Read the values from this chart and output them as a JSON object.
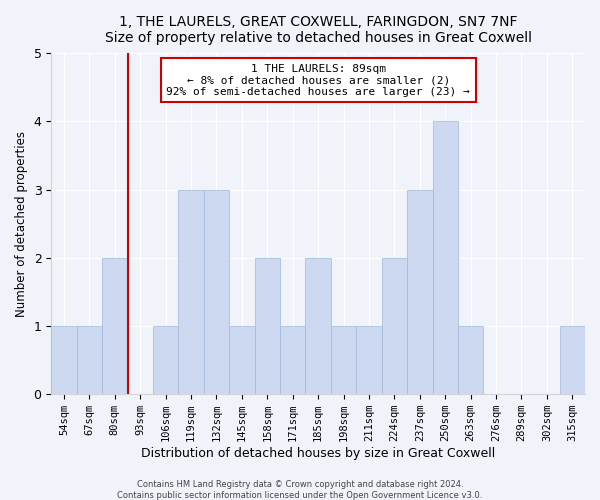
{
  "title": "1, THE LAURELS, GREAT COXWELL, FARINGDON, SN7 7NF",
  "subtitle": "Size of property relative to detached houses in Great Coxwell",
  "xlabel": "Distribution of detached houses by size in Great Coxwell",
  "ylabel": "Number of detached properties",
  "bins": [
    "54sqm",
    "67sqm",
    "80sqm",
    "93sqm",
    "106sqm",
    "119sqm",
    "132sqm",
    "145sqm",
    "158sqm",
    "171sqm",
    "185sqm",
    "198sqm",
    "211sqm",
    "224sqm",
    "237sqm",
    "250sqm",
    "263sqm",
    "276sqm",
    "289sqm",
    "302sqm",
    "315sqm"
  ],
  "values": [
    1,
    1,
    2,
    0,
    1,
    3,
    3,
    1,
    2,
    1,
    2,
    1,
    1,
    2,
    3,
    4,
    1,
    0,
    0,
    0,
    1
  ],
  "bar_color": "#ccd9f0",
  "bar_edge_color": "#a0b8d8",
  "highlight_color": "#cc0000",
  "annotation_title": "1 THE LAURELS: 89sqm",
  "annotation_line1": "← 8% of detached houses are smaller (2)",
  "annotation_line2": "92% of semi-detached houses are larger (23) →",
  "ylim": [
    0,
    5
  ],
  "yticks": [
    0,
    1,
    2,
    3,
    4,
    5
  ],
  "footer1": "Contains HM Land Registry data © Crown copyright and database right 2024.",
  "footer2": "Contains public sector information licensed under the Open Government Licence v3.0.",
  "bg_color": "#f0f4fa"
}
